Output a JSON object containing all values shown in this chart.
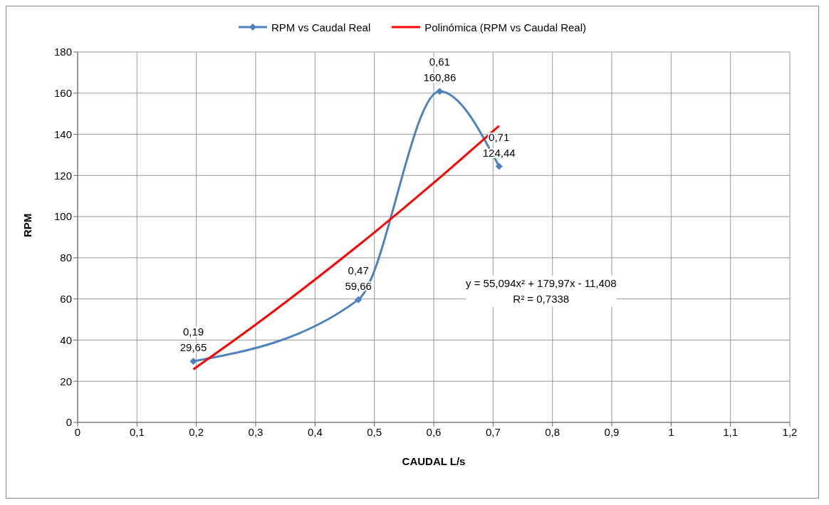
{
  "chart_data": {
    "type": "line",
    "xlabel": "CAUDAL L/s",
    "ylabel": "RPM",
    "xlim": [
      0,
      1.2
    ],
    "xticks": [
      {
        "value": 0,
        "label": "0"
      },
      {
        "value": 0.1,
        "label": "0,1"
      },
      {
        "value": 0.2,
        "label": "0,2"
      },
      {
        "value": 0.3,
        "label": "0,3"
      },
      {
        "value": 0.4,
        "label": "0,4"
      },
      {
        "value": 0.5,
        "label": "0,5"
      },
      {
        "value": 0.6,
        "label": "0,6"
      },
      {
        "value": 0.7,
        "label": "0,7"
      },
      {
        "value": 0.8,
        "label": "0,8"
      },
      {
        "value": 0.9,
        "label": "0,9"
      },
      {
        "value": 1,
        "label": "1"
      },
      {
        "value": 1.1,
        "label": "1,1"
      },
      {
        "value": 1.2,
        "label": "1,2"
      }
    ],
    "ylim": [
      0,
      180
    ],
    "yticks": [
      0,
      20,
      40,
      60,
      80,
      100,
      120,
      140,
      160,
      180
    ],
    "grid": true,
    "legend": "top",
    "series": [
      {
        "name": "RPM vs Caudal Real",
        "color": "#4f81bd",
        "marker": "diamond",
        "x": [
          0.195,
          0.473,
          0.61,
          0.71
        ],
        "values": [
          29.65,
          59.66,
          160.86,
          124.44
        ],
        "value_labels": [
          "0,19\n29,65",
          "0,47\n59,66",
          "0,61\n160,86",
          "0,71\n124,44"
        ]
      },
      {
        "name": "Polinómica (RPM vs Caudal Real)",
        "color": "#ff0000",
        "marker": "none",
        "x": [
          0.195,
          0.3,
          0.4,
          0.5,
          0.6,
          0.71
        ],
        "values": [
          25.8,
          47.5,
          69.4,
          92.3,
          116.4,
          144.1
        ]
      }
    ],
    "annotations": [
      "y = 55,094x² + 179,97x - 11,408",
      "R² = 0,7338"
    ]
  }
}
